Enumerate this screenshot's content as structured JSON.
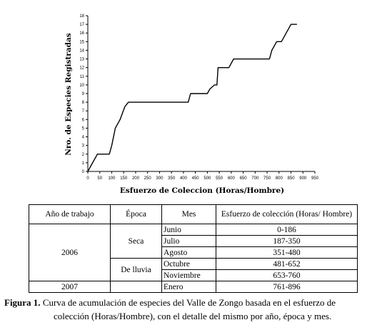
{
  "chart_data": {
    "type": "line",
    "title": "",
    "xlabel": "Esfuerzo de Coleccion (Horas/Hombre)",
    "ylabel": "Nro. de Especies Registradas",
    "xlim": [
      0,
      950
    ],
    "ylim": [
      0,
      18
    ],
    "x_ticks": [
      0,
      50,
      100,
      150,
      200,
      250,
      300,
      350,
      400,
      450,
      500,
      550,
      600,
      650,
      700,
      750,
      800,
      850,
      900,
      950
    ],
    "y_ticks": [
      0,
      1,
      2,
      3,
      4,
      5,
      6,
      7,
      8,
      9,
      10,
      11,
      12,
      13,
      14,
      15,
      16,
      17,
      18
    ],
    "grid": false,
    "series": [
      {
        "color": "#000000",
        "x": [
          0,
          10,
          20,
          40,
          90,
          100,
          115,
          135,
          155,
          170,
          180,
          190,
          420,
          430,
          500,
          510,
          530,
          540,
          545,
          560,
          580,
          590,
          610,
          620,
          750,
          760,
          770,
          780,
          790,
          810,
          820,
          830,
          840,
          850,
          860,
          875
        ],
        "y": [
          0,
          0.5,
          1,
          2,
          2,
          3,
          5,
          6,
          7.5,
          8,
          8,
          8,
          8,
          9,
          9,
          9.5,
          10,
          10,
          12,
          12,
          12,
          12,
          13,
          13,
          13,
          13,
          14,
          14.5,
          15,
          15,
          15.5,
          16,
          16.5,
          17,
          17,
          17
        ]
      }
    ]
  },
  "table": {
    "headers": [
      "Año de trabajo",
      "Época",
      "Mes",
      "Esfuerzo de colección (Horas/ Hombre)"
    ],
    "year_2006": "2006",
    "year_2007": "2007",
    "season_seca": "Seca",
    "season_lluvia": "De lluvia",
    "rows": [
      {
        "month": "Junio",
        "effort": "0-186"
      },
      {
        "month": "Julio",
        "effort": "187-350"
      },
      {
        "month": "Agosto",
        "effort": "351-480"
      },
      {
        "month": "Octubre",
        "effort": "481-652"
      },
      {
        "month": "Noviembre",
        "effort": "653-760"
      },
      {
        "month": "Enero",
        "effort": "761-896"
      }
    ]
  },
  "caption": {
    "label": "Figura 1.",
    "line1": "Curva de acumulación de especies del Valle de Zongo basada en el esfuerzo de",
    "line2": "colección (Horas/Hombre), con el detalle del mismo por año, época y mes."
  }
}
